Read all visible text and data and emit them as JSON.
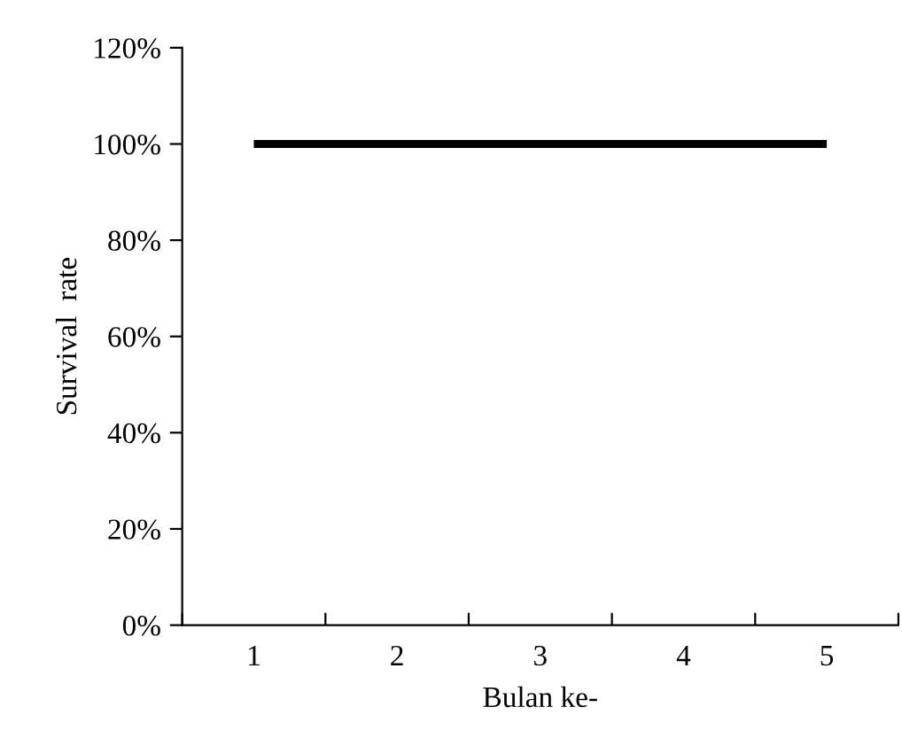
{
  "chart_data": {
    "type": "line",
    "xlabel": "Bulan ke-",
    "ylabel": "Survival  rate",
    "categories": [
      "1",
      "2",
      "3",
      "4",
      "5"
    ],
    "series": [
      {
        "color": "#000000",
        "values": [
          100,
          100,
          100,
          100,
          100
        ]
      }
    ],
    "ylim": [
      0,
      120
    ],
    "yticks": [
      {
        "value": 0,
        "label": "0%"
      },
      {
        "value": 20,
        "label": "20%"
      },
      {
        "value": 40,
        "label": "40%"
      },
      {
        "value": 60,
        "label": "60%"
      },
      {
        "value": 80,
        "label": "80%"
      },
      {
        "value": 100,
        "label": "100%"
      },
      {
        "value": 120,
        "label": "120%"
      }
    ],
    "grid": false,
    "marker": "none",
    "line_style": "solid"
  }
}
